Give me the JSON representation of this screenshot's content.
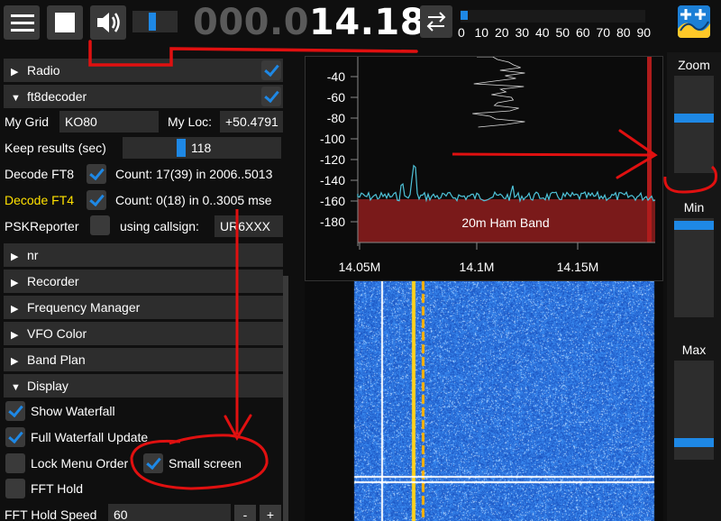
{
  "topbar": {
    "freq_dim": "000.0",
    "freq_bright": "14.182",
    "snr_ticks": [
      "0",
      "10",
      "20",
      "30",
      "40",
      "50",
      "60",
      "70",
      "80",
      "90"
    ],
    "snr_fill_fraction": 0.03
  },
  "menu": {
    "radio": "Radio",
    "ft8decoder": "ft8decoder",
    "my_grid_label": "My Grid",
    "my_grid_value": "KO80",
    "my_loc_label": "My Loc:",
    "my_loc_value": "+50.4791",
    "keep_results_label": "Keep results (sec)",
    "keep_results_value": "118",
    "decode_ft8_label": "Decode FT8",
    "decode_ft8_count": "Count: 17(39) in 2006..5013",
    "decode_ft4_label": "Decode FT4",
    "decode_ft4_count": "Count: 0(18) in 0..3005 mse",
    "pskreporter_label": "PSKReporter",
    "callsign_label": "using callsign:",
    "callsign_value": "UR6XXX",
    "nr": "nr",
    "recorder": "Recorder",
    "frequency_manager": "Frequency Manager",
    "vfo_color": "VFO Color",
    "band_plan": "Band Plan",
    "display": "Display",
    "show_waterfall": "Show Waterfall",
    "full_waterfall_update": "Full Waterfall Update",
    "lock_menu_order": "Lock Menu Order",
    "small_screen": "Small screen",
    "fft_hold": "FFT Hold",
    "fft_hold_speed_label": "FFT Hold Speed",
    "fft_hold_speed_value": "60",
    "minus": "-",
    "plus": "+"
  },
  "spectrum": {
    "y_ticks": [
      "-40",
      "-60",
      "-80",
      "-100",
      "-120",
      "-140",
      "-160",
      "-180"
    ],
    "x_ticks": [
      "14.05M",
      "14.1M",
      "14.15M"
    ],
    "band_label": "20m Ham Band"
  },
  "right_panel": {
    "zoom": "Zoom",
    "min": "Min",
    "max": "Max"
  },
  "colors": {
    "accent": "#1e88e5",
    "annotation": "#e01010",
    "band_fill": "#7a1a1a",
    "trace": "#4fc3d9",
    "waterfall": "#1e63d0",
    "signal": "#ffd21a"
  }
}
